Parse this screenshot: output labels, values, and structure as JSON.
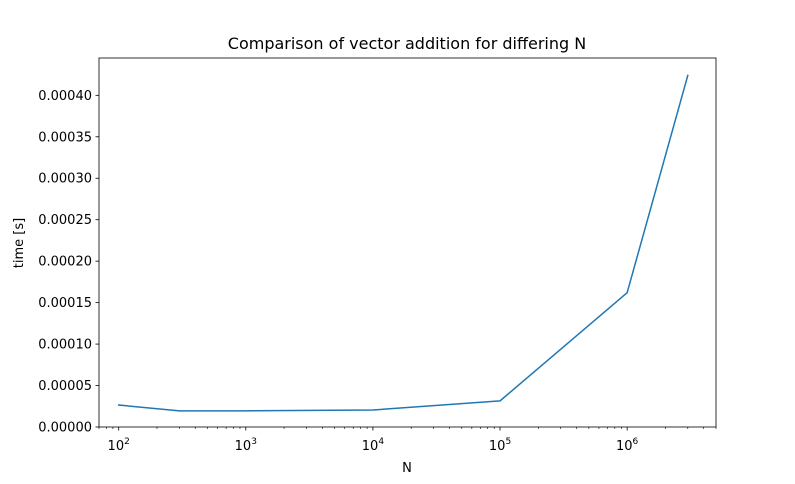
{
  "chart_data": {
    "type": "line",
    "title": "Comparison of vector addition for differing N",
    "xlabel": "N",
    "ylabel": "time [s]",
    "xscale": "log",
    "xlim": [
      70,
      5000000
    ],
    "ylim": [
      0,
      0.000445
    ],
    "grid": false,
    "legend": "none",
    "x_ticks": [
      {
        "value": 100,
        "base": "10",
        "exp": "2"
      },
      {
        "value": 1000,
        "base": "10",
        "exp": "3"
      },
      {
        "value": 10000,
        "base": "10",
        "exp": "4"
      },
      {
        "value": 100000,
        "base": "10",
        "exp": "5"
      },
      {
        "value": 1000000,
        "base": "10",
        "exp": "6"
      }
    ],
    "y_ticks": [
      {
        "value": 0.0,
        "label": "0.00000"
      },
      {
        "value": 5e-05,
        "label": "0.00005"
      },
      {
        "value": 0.0001,
        "label": "0.00010"
      },
      {
        "value": 0.00015,
        "label": "0.00015"
      },
      {
        "value": 0.0002,
        "label": "0.00020"
      },
      {
        "value": 0.00025,
        "label": "0.00025"
      },
      {
        "value": 0.0003,
        "label": "0.00030"
      },
      {
        "value": 0.00035,
        "label": "0.00035"
      },
      {
        "value": 0.0004,
        "label": "0.00040"
      }
    ],
    "series": [
      {
        "color": "#1f77b4",
        "x": [
          100,
          300,
          1000,
          10000,
          100000,
          1000000,
          3000000
        ],
        "y": [
          2.65e-05,
          1.95e-05,
          1.95e-05,
          2.05e-05,
          3.15e-05,
          0.000162,
          0.000424
        ]
      }
    ]
  }
}
